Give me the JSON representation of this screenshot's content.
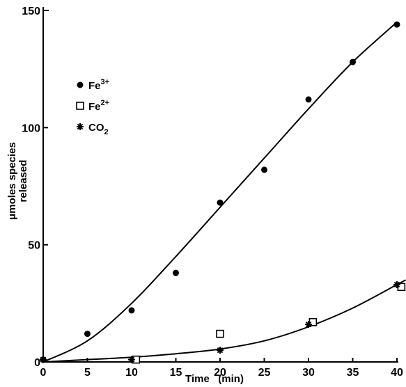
{
  "chart_data": {
    "type": "scatter",
    "title": "",
    "xlabel": "Time   (min)",
    "ylabel_line1": "μmoles species",
    "ylabel_line2": "released",
    "xlim": [
      0,
      40
    ],
    "ylim": [
      0,
      150
    ],
    "x_ticks": [
      "0",
      "5",
      "10",
      "15",
      "20",
      "25",
      "30",
      "35",
      "40"
    ],
    "y_ticks": [
      "0",
      "50",
      "100",
      "150"
    ],
    "legend_position": "upper-left",
    "series": [
      {
        "name": "Fe³⁺",
        "legend_base": "Fe",
        "legend_sup": "3+",
        "marker": "filled-circle",
        "x": [
          0,
          5,
          10,
          15,
          20,
          25,
          30,
          35,
          40
        ],
        "y": [
          1,
          12,
          22,
          38,
          68,
          82,
          112,
          128,
          144
        ],
        "fit_curve": [
          [
            0,
            0
          ],
          [
            5,
            9
          ],
          [
            10,
            25
          ],
          [
            15,
            45
          ],
          [
            20,
            66
          ],
          [
            25,
            87
          ],
          [
            30,
            108
          ],
          [
            35,
            128
          ],
          [
            40,
            145
          ]
        ]
      },
      {
        "name": "Fe²⁺",
        "legend_base": "Fe",
        "legend_sup": "2+",
        "marker": "open-square",
        "x": [
          10.5,
          20,
          30.5,
          40.5
        ],
        "y": [
          1,
          12,
          17,
          32
        ]
      },
      {
        "name": "CO₂",
        "legend_base": "CO",
        "legend_sub": "2",
        "marker": "star",
        "x": [
          0,
          10,
          20,
          30,
          40
        ],
        "y": [
          1,
          1,
          5,
          16,
          33
        ],
        "fit_curve": [
          [
            0,
            0
          ],
          [
            5,
            1
          ],
          [
            10,
            2
          ],
          [
            15,
            3.5
          ],
          [
            20,
            5.5
          ],
          [
            25,
            9
          ],
          [
            30,
            15
          ],
          [
            35,
            23
          ],
          [
            40,
            33
          ],
          [
            41,
            35
          ]
        ]
      }
    ]
  }
}
